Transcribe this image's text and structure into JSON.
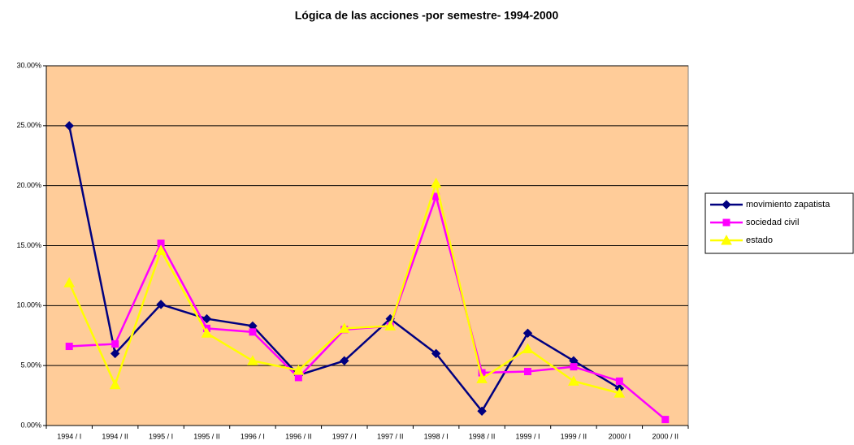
{
  "chart_data": {
    "type": "line",
    "title": "Lógica de las acciones -por semestre- 1994-2000",
    "categories": [
      "1994 / I",
      "1994 / II",
      "1995 / I",
      "1995 / II",
      "1996 / I",
      "1996 / II",
      "1997 / I",
      "1997 / II",
      "1998 / I",
      "1998 / II",
      "1999 / I",
      "1999 / II",
      "2000/ I",
      "2000 / II"
    ],
    "series": [
      {
        "name": "movimiento zapatista",
        "color": "#000080",
        "marker": "diamond",
        "values": [
          25.0,
          6.0,
          10.1,
          8.9,
          8.3,
          4.2,
          5.4,
          8.9,
          6.0,
          1.2,
          7.7,
          5.4,
          3.1,
          null
        ]
      },
      {
        "name": "sociedad civil",
        "color": "#ff00ff",
        "marker": "square",
        "values": [
          6.6,
          6.8,
          15.2,
          8.1,
          7.8,
          4.0,
          8.0,
          8.3,
          19.1,
          4.4,
          4.5,
          4.9,
          3.7,
          0.5
        ]
      },
      {
        "name": "estado",
        "color": "#ffff00",
        "marker": "triangle",
        "values": [
          11.9,
          3.4,
          14.6,
          7.7,
          5.4,
          4.6,
          8.1,
          8.3,
          20.2,
          3.9,
          6.4,
          3.7,
          2.7,
          null
        ]
      }
    ],
    "ylim": [
      0,
      30
    ],
    "yticks": [
      {
        "value": 0,
        "label": "0.00%"
      },
      {
        "value": 5,
        "label": "5.00%"
      },
      {
        "value": 10,
        "label": "10.00%"
      },
      {
        "value": 15,
        "label": "15.00%"
      },
      {
        "value": 20,
        "label": "20.00%"
      },
      {
        "value": 25,
        "label": "25.00%"
      },
      {
        "value": 30,
        "label": "30.00%"
      }
    ],
    "grid": true,
    "plot_color": "#ffcc99",
    "legend": "right"
  }
}
